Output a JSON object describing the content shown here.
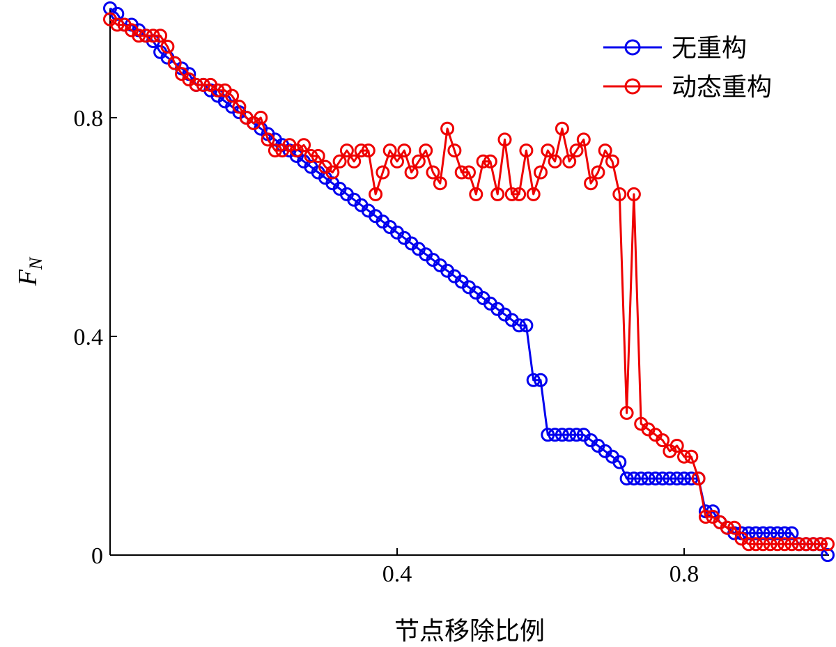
{
  "chart_data": {
    "type": "line",
    "title": "",
    "xlabel": "节点移除比例",
    "ylabel": "F",
    "ylabel_sub": "N",
    "xlim": [
      0,
      1.0
    ],
    "ylim": [
      0,
      1.0
    ],
    "xticks": [
      0.4,
      0.8
    ],
    "xtick_labels": [
      "0.4",
      "0.8"
    ],
    "yticks": [
      0,
      0.4,
      0.8
    ],
    "ytick_labels": [
      "0",
      "0.4",
      "0.8"
    ],
    "grid": false,
    "legend_position": "top-right",
    "marker": "circle",
    "series": [
      {
        "name": "无重构",
        "color": "#0000ee",
        "x": [
          0,
          0.01,
          0.02,
          0.03,
          0.04,
          0.05,
          0.06,
          0.07,
          0.08,
          0.09,
          0.1,
          0.11,
          0.12,
          0.13,
          0.14,
          0.15,
          0.16,
          0.17,
          0.18,
          0.19,
          0.2,
          0.21,
          0.22,
          0.23,
          0.24,
          0.25,
          0.26,
          0.27,
          0.28,
          0.29,
          0.3,
          0.31,
          0.32,
          0.33,
          0.34,
          0.35,
          0.36,
          0.37,
          0.38,
          0.39,
          0.4,
          0.41,
          0.42,
          0.43,
          0.44,
          0.45,
          0.46,
          0.47,
          0.48,
          0.49,
          0.5,
          0.51,
          0.52,
          0.53,
          0.54,
          0.55,
          0.56,
          0.57,
          0.58,
          0.59,
          0.6,
          0.61,
          0.62,
          0.63,
          0.64,
          0.65,
          0.66,
          0.67,
          0.68,
          0.69,
          0.7,
          0.71,
          0.72,
          0.73,
          0.74,
          0.75,
          0.76,
          0.77,
          0.78,
          0.79,
          0.8,
          0.81,
          0.82,
          0.83,
          0.84,
          0.85,
          0.86,
          0.87,
          0.88,
          0.89,
          0.9,
          0.91,
          0.92,
          0.93,
          0.94,
          0.95,
          0.96,
          0.97,
          0.98,
          0.99,
          1.0
        ],
        "y": [
          1.0,
          0.99,
          0.97,
          0.97,
          0.96,
          0.95,
          0.94,
          0.92,
          0.91,
          0.9,
          0.89,
          0.88,
          0.86,
          0.86,
          0.85,
          0.84,
          0.83,
          0.82,
          0.81,
          0.8,
          0.79,
          0.78,
          0.77,
          0.76,
          0.75,
          0.74,
          0.73,
          0.72,
          0.71,
          0.7,
          0.69,
          0.68,
          0.67,
          0.66,
          0.65,
          0.64,
          0.63,
          0.62,
          0.61,
          0.6,
          0.59,
          0.58,
          0.57,
          0.56,
          0.55,
          0.54,
          0.53,
          0.52,
          0.51,
          0.5,
          0.49,
          0.48,
          0.47,
          0.46,
          0.45,
          0.44,
          0.43,
          0.42,
          0.42,
          0.32,
          0.32,
          0.22,
          0.22,
          0.22,
          0.22,
          0.22,
          0.22,
          0.21,
          0.2,
          0.19,
          0.18,
          0.17,
          0.14,
          0.14,
          0.14,
          0.14,
          0.14,
          0.14,
          0.14,
          0.14,
          0.14,
          0.14,
          0.14,
          0.08,
          0.08,
          0.06,
          0.05,
          0.04,
          0.04,
          0.04,
          0.04,
          0.04,
          0.04,
          0.04,
          0.04,
          0.04,
          0.02,
          0.02,
          0.02,
          0.02,
          0.0
        ]
      },
      {
        "name": "动态重构",
        "color": "#ee0000",
        "x": [
          0,
          0.01,
          0.02,
          0.03,
          0.04,
          0.05,
          0.06,
          0.07,
          0.08,
          0.09,
          0.1,
          0.11,
          0.12,
          0.13,
          0.14,
          0.15,
          0.16,
          0.17,
          0.18,
          0.19,
          0.2,
          0.21,
          0.22,
          0.23,
          0.24,
          0.25,
          0.26,
          0.27,
          0.28,
          0.29,
          0.3,
          0.31,
          0.32,
          0.33,
          0.34,
          0.35,
          0.36,
          0.37,
          0.38,
          0.39,
          0.4,
          0.41,
          0.42,
          0.43,
          0.44,
          0.45,
          0.46,
          0.47,
          0.48,
          0.49,
          0.5,
          0.51,
          0.52,
          0.53,
          0.54,
          0.55,
          0.56,
          0.57,
          0.58,
          0.59,
          0.6,
          0.61,
          0.62,
          0.63,
          0.64,
          0.65,
          0.66,
          0.67,
          0.68,
          0.69,
          0.7,
          0.71,
          0.72,
          0.73,
          0.74,
          0.75,
          0.76,
          0.77,
          0.78,
          0.79,
          0.8,
          0.81,
          0.82,
          0.83,
          0.84,
          0.85,
          0.86,
          0.87,
          0.88,
          0.89,
          0.9,
          0.91,
          0.92,
          0.93,
          0.94,
          0.95,
          0.96,
          0.97,
          0.98,
          0.99,
          1.0
        ],
        "y": [
          0.98,
          0.97,
          0.97,
          0.96,
          0.95,
          0.95,
          0.95,
          0.95,
          0.93,
          0.9,
          0.88,
          0.87,
          0.86,
          0.86,
          0.86,
          0.85,
          0.85,
          0.84,
          0.82,
          0.8,
          0.79,
          0.8,
          0.76,
          0.74,
          0.74,
          0.75,
          0.74,
          0.75,
          0.73,
          0.73,
          0.71,
          0.7,
          0.72,
          0.74,
          0.72,
          0.74,
          0.74,
          0.66,
          0.7,
          0.74,
          0.72,
          0.74,
          0.7,
          0.72,
          0.74,
          0.7,
          0.68,
          0.78,
          0.74,
          0.7,
          0.7,
          0.66,
          0.72,
          0.72,
          0.66,
          0.76,
          0.66,
          0.66,
          0.74,
          0.66,
          0.7,
          0.74,
          0.72,
          0.78,
          0.72,
          0.74,
          0.76,
          0.68,
          0.7,
          0.74,
          0.72,
          0.66,
          0.26,
          0.66,
          0.24,
          0.23,
          0.22,
          0.21,
          0.19,
          0.2,
          0.18,
          0.18,
          0.14,
          0.07,
          0.07,
          0.06,
          0.05,
          0.05,
          0.03,
          0.02,
          0.02,
          0.02,
          0.02,
          0.02,
          0.02,
          0.02,
          0.02,
          0.02,
          0.02,
          0.02,
          0.02
        ]
      }
    ]
  }
}
